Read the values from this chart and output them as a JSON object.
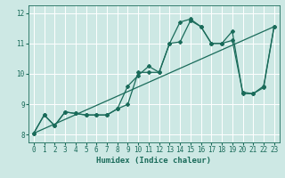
{
  "xlabel": "Humidex (Indice chaleur)",
  "bg_color": "#cde8e4",
  "grid_color": "#ffffff",
  "line_color": "#1a6b5a",
  "xlim": [
    -0.5,
    23.5
  ],
  "ylim": [
    7.75,
    12.25
  ],
  "xticks": [
    0,
    1,
    2,
    3,
    4,
    5,
    6,
    7,
    8,
    9,
    10,
    11,
    12,
    13,
    14,
    15,
    16,
    17,
    18,
    19,
    20,
    21,
    22,
    23
  ],
  "yticks": [
    8,
    9,
    10,
    11,
    12
  ],
  "series1_x": [
    0,
    1,
    2,
    3,
    4,
    5,
    6,
    7,
    8,
    9,
    10,
    11,
    12,
    13,
    14,
    15,
    16,
    17,
    18,
    19,
    20,
    21,
    22,
    23
  ],
  "series1_y": [
    8.05,
    8.65,
    8.3,
    8.75,
    8.7,
    8.65,
    8.65,
    8.65,
    8.85,
    9.6,
    9.95,
    10.25,
    10.05,
    11.0,
    11.7,
    11.8,
    11.55,
    11.0,
    11.0,
    11.4,
    9.35,
    9.35,
    9.6,
    11.55
  ],
  "series2_x": [
    0,
    1,
    2,
    3,
    4,
    5,
    6,
    7,
    8,
    9,
    10,
    11,
    12,
    13,
    14,
    15,
    16,
    17,
    18,
    19,
    20,
    21,
    22,
    23
  ],
  "series2_y": [
    8.05,
    8.65,
    8.3,
    8.75,
    8.7,
    8.65,
    8.65,
    8.65,
    8.85,
    9.0,
    10.05,
    10.05,
    10.05,
    11.0,
    11.05,
    11.75,
    11.55,
    11.0,
    11.0,
    11.1,
    9.4,
    9.35,
    9.55,
    11.55
  ],
  "series3_x": [
    0,
    23
  ],
  "series3_y": [
    8.05,
    11.55
  ]
}
